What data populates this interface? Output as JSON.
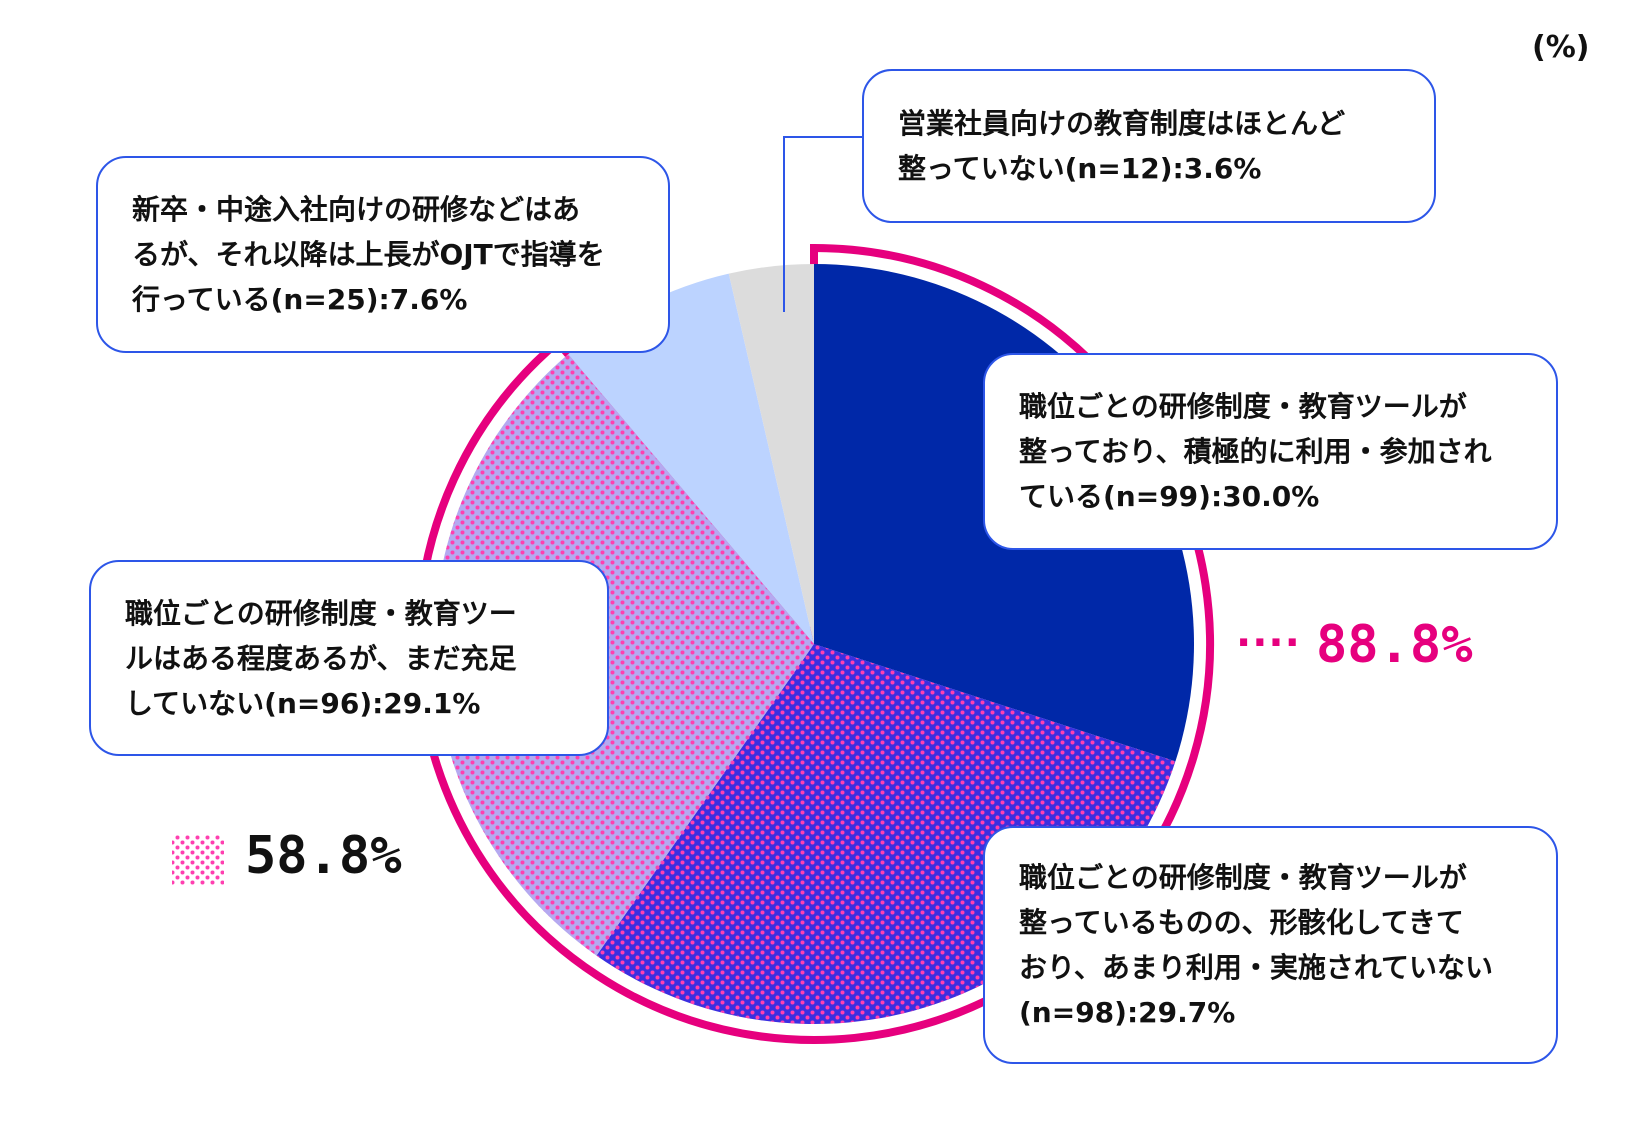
{
  "chart_data": {
    "type": "pie",
    "unit_label": "(%)",
    "slices": [
      {
        "label": "職位ごとの研修制度・教育ツールが整っており、積極的に利用・参加されている(n=99):30.0%",
        "value": 30.0,
        "color": "#0028a8",
        "pattern": "solid"
      },
      {
        "label": "職位ごとの研修制度・教育ツールが整っているものの、形骸化してきており、あまり利用・実施されていない(n=98):29.7%",
        "value": 29.7,
        "color": "#3a2fe0",
        "pattern": "pink-dots"
      },
      {
        "label": "職位ごとの研修制度・教育ツールはある程度あるが、まだ充足していない(n=96):29.1%",
        "value": 29.1,
        "color": "#b5a9f0",
        "pattern": "pink-dots"
      },
      {
        "label": "新卒・中途入社向けの研修などはあるが、それ以降は上長がOJTで指導を行っている(n=25):7.6%",
        "value": 7.6,
        "color": "#bcd3ff",
        "pattern": "solid"
      },
      {
        "label": "営業社員向けの教育制度はほとんど整っていない(n=12):3.6%",
        "value": 3.6,
        "color": "#dcdcdc",
        "pattern": "solid"
      }
    ],
    "callouts": {
      "s0": [
        "職位ごとの研修制度・教育ツールが",
        "整っており、積極的に利用・参加され",
        "ている(n=99):30.0%"
      ],
      "s1": [
        "職位ごとの研修制度・教育ツールが",
        "整っているものの、形骸化してきて",
        "おり、あまり利用・実施されていない",
        "(n=98):29.7%"
      ],
      "s2": [
        "職位ごとの研修制度・教育ツー",
        "ルはある程度あるが、まだ充足",
        "していない(n=96):29.1%"
      ],
      "s3": [
        "新卒・中途入社向けの研修などはあ",
        "るが、それ以降は上長がOJTで指導を",
        "行っている(n=25):7.6%"
      ],
      "s4": [
        "営業社員向けの教育制度はほとんど",
        "整っていない(n=12):3.6%"
      ]
    },
    "totals": [
      {
        "label": "88.8%",
        "value": 88.8,
        "covers": [
          "s0",
          "s1",
          "s2"
        ],
        "color": "#e6007e"
      },
      {
        "label": "58.8%",
        "value": 58.8,
        "covers": [
          "s1",
          "s2"
        ],
        "marker": "pink-dots"
      }
    ],
    "accent_color": "#e6007e",
    "callout_border_color": "#2d56e8"
  }
}
